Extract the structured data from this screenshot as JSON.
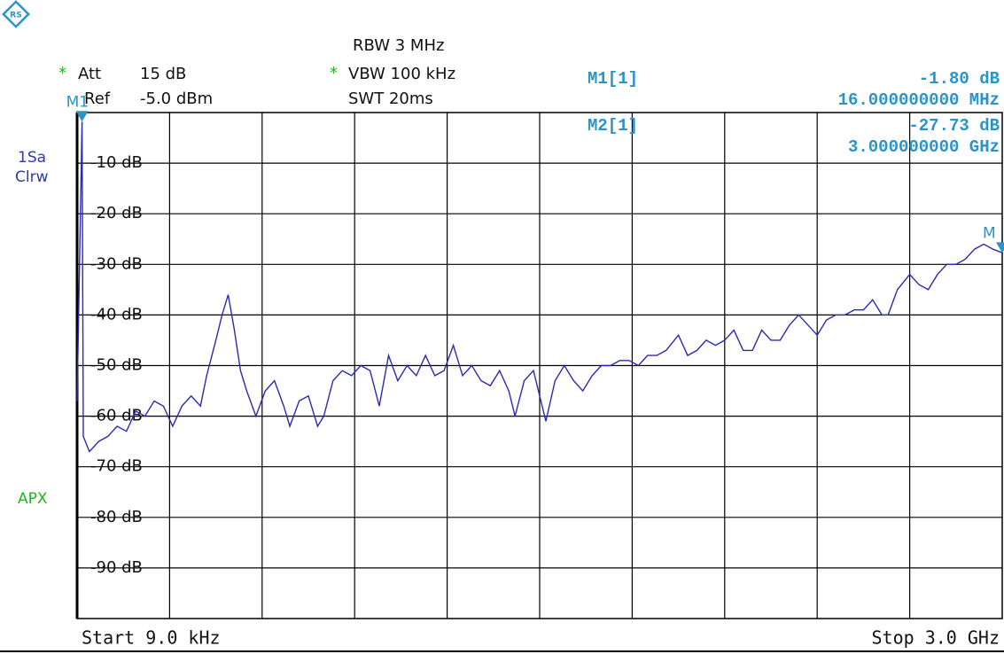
{
  "chart_data": {
    "type": "line",
    "settings": {
      "star": "*",
      "att": "Att",
      "att_value": "15 dB",
      "ref": "Ref",
      "ref_value": "-5.0 dBm",
      "rbw": "RBW 3 MHz",
      "vbw": "VBW 100 kHz",
      "swt": "SWT 20ms"
    },
    "side_labels": {
      "sa": "1Sa",
      "mode": "Clrw",
      "detector": "APX"
    },
    "start_label": "Start 9.0 kHz",
    "stop_label": "Stop 3.0 GHz",
    "xlim": [
      9e-06,
      3
    ],
    "ylim": [
      -100,
      0
    ],
    "yticks": [
      {
        "value": -10,
        "label": "-10 dB"
      },
      {
        "value": -20,
        "label": "-20 dB"
      },
      {
        "value": -30,
        "label": "-30 dB"
      },
      {
        "value": -40,
        "label": "-40 dB"
      },
      {
        "value": -50,
        "label": "-50 dB"
      },
      {
        "value": -60,
        "label": "-60 dB"
      },
      {
        "value": -70,
        "label": "-70 dB"
      },
      {
        "value": -80,
        "label": "-80 dB"
      },
      {
        "value": -90,
        "label": "-90 dB"
      }
    ],
    "grid": true,
    "markers": [
      {
        "name": "M1[1]",
        "tag": "M1",
        "x": 0.016,
        "value": -1.8,
        "value_label": "-1.80 dB",
        "x_label": "16.000000000 MHz",
        "color": "#2a93c9"
      },
      {
        "name": "M2[1]",
        "tag": "M",
        "x": 3,
        "value": -27.73,
        "value_label": "-27.73 dB",
        "x_label": "3.000000000 GHz",
        "color": "#2a93c9"
      }
    ],
    "x": [
      9e-06,
      0.016,
      0.02,
      0.04,
      0.07,
      0.1,
      0.13,
      0.16,
      0.19,
      0.22,
      0.25,
      0.28,
      0.31,
      0.34,
      0.37,
      0.4,
      0.42,
      0.45,
      0.47,
      0.49,
      0.51,
      0.53,
      0.55,
      0.58,
      0.61,
      0.64,
      0.67,
      0.69,
      0.72,
      0.75,
      0.78,
      0.8,
      0.83,
      0.86,
      0.89,
      0.92,
      0.95,
      0.98,
      1.01,
      1.04,
      1.07,
      1.1,
      1.13,
      1.16,
      1.19,
      1.22,
      1.25,
      1.28,
      1.31,
      1.34,
      1.37,
      1.4,
      1.42,
      1.45,
      1.48,
      1.52,
      1.55,
      1.58,
      1.61,
      1.64,
      1.67,
      1.7,
      1.73,
      1.76,
      1.79,
      1.82,
      1.85,
      1.88,
      1.91,
      1.95,
      1.98,
      2.01,
      2.04,
      2.07,
      2.1,
      2.13,
      2.16,
      2.19,
      2.22,
      2.25,
      2.28,
      2.31,
      2.34,
      2.37,
      2.4,
      2.43,
      2.46,
      2.49,
      2.52,
      2.55,
      2.58,
      2.61,
      2.63,
      2.66,
      2.7,
      2.73,
      2.76,
      2.79,
      2.82,
      2.85,
      2.88,
      2.91,
      2.94,
      2.97,
      3.0
    ],
    "series": [
      {
        "color": "#2b2bb0",
        "values": [
          -57,
          -1.8,
          -64,
          -67,
          -65,
          -64,
          -62,
          -63,
          -59,
          -60,
          -57,
          -58,
          -62,
          -58,
          -56,
          -58,
          -52,
          -45,
          -40,
          -36,
          -43,
          -51,
          -55,
          -60,
          -55,
          -53,
          -58,
          -62,
          -57,
          -56,
          -62,
          -60,
          -53,
          -51,
          -52,
          -50,
          -51,
          -58,
          -48,
          -53,
          -50,
          -52,
          -48,
          -52,
          -51,
          -46,
          -52,
          -50,
          -53,
          -54,
          -51,
          -55,
          -60,
          -53,
          -51,
          -61,
          -53,
          -50,
          -53,
          -55,
          -52,
          -50,
          -50,
          -49,
          -49,
          -50,
          -48,
          -48,
          -47,
          -44,
          -48,
          -47,
          -45,
          -46,
          -45,
          -43,
          -47,
          -47,
          -43,
          -45,
          -45,
          -42,
          -40,
          -42,
          -44,
          -41,
          -40,
          -40,
          -39,
          -39,
          -37,
          -40,
          -40,
          -35,
          -32,
          -34,
          -35,
          -32,
          -30,
          -30,
          -29,
          -27,
          -26,
          -27,
          -27.7
        ]
      }
    ]
  }
}
